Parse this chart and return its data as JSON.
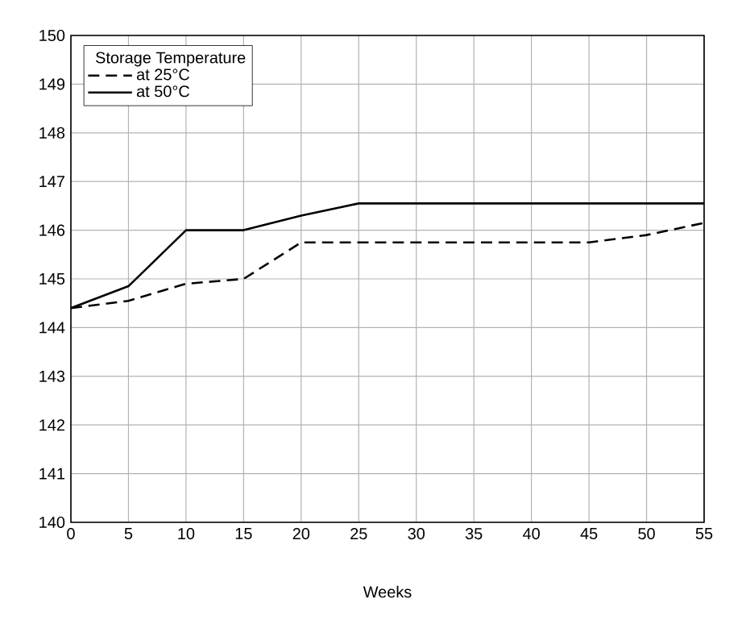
{
  "chart_data": {
    "type": "line",
    "xlabel": "Weeks",
    "legend_title": "Storage Temperature",
    "x": [
      0,
      5,
      10,
      15,
      20,
      25,
      30,
      35,
      40,
      45,
      50,
      55
    ],
    "series": [
      {
        "name": "at 25°C",
        "color": "#000000",
        "line_style": "dashed",
        "values": [
          144.4,
          144.55,
          144.9,
          145.0,
          145.75,
          145.75,
          145.75,
          145.75,
          145.75,
          145.75,
          145.9,
          146.15
        ]
      },
      {
        "name": "at 50°C",
        "color": "#000000",
        "line_style": "solid",
        "values": [
          144.4,
          144.85,
          146.0,
          146.0,
          146.3,
          146.55,
          146.55,
          146.55,
          146.55,
          146.55,
          146.55,
          146.55
        ]
      }
    ],
    "xlim": [
      0,
      55
    ],
    "ylim": [
      140,
      150
    ],
    "xticks": [
      0,
      5,
      10,
      15,
      20,
      25,
      30,
      35,
      40,
      45,
      50,
      55
    ],
    "yticks": [
      140,
      141,
      142,
      143,
      144,
      145,
      146,
      147,
      148,
      149,
      150
    ],
    "grid": true,
    "legend": "top left",
    "marker": "none"
  }
}
